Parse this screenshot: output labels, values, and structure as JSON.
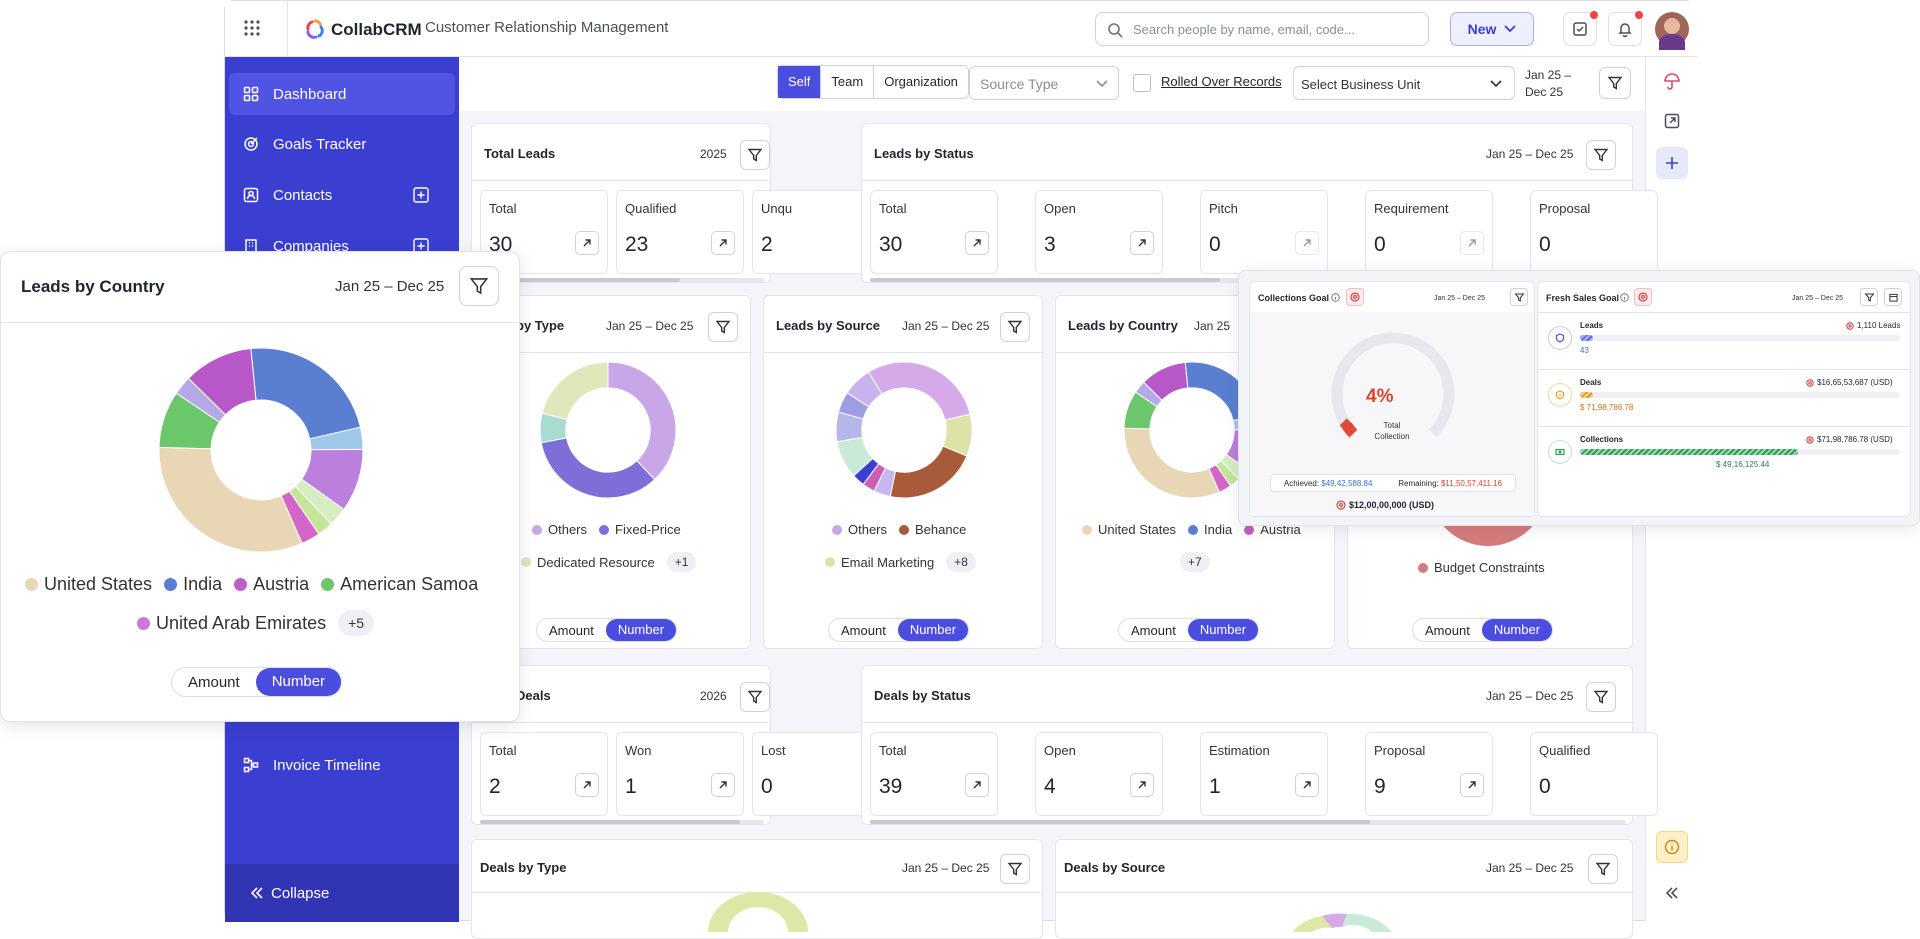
{
  "topbar": {
    "brand": "CollabCRM",
    "subtitle": "Customer Relationship Management",
    "search_placeholder": "Search people by name, email, code...",
    "new_label": "New"
  },
  "sidebar": {
    "items": [
      {
        "label": "Dashboard"
      },
      {
        "label": "Goals Tracker"
      },
      {
        "label": "Contacts"
      },
      {
        "label": "Companies"
      },
      {
        "label": "Invoice Timeline"
      }
    ],
    "collapse_label": "Collapse"
  },
  "filters": {
    "scope_options": [
      "Self",
      "Team",
      "Organization"
    ],
    "source_type_placeholder": "Source Type",
    "rolled_over_label": "Rolled Over Records",
    "business_unit_placeholder": "Select Business Unit",
    "date_line1": "Jan 25 –",
    "date_line2": "Dec 25"
  },
  "total_leads": {
    "title": "Total Leads",
    "year": "2025",
    "stats": [
      {
        "label": "Total",
        "value": "30"
      },
      {
        "label": "Qualified",
        "value": "23"
      },
      {
        "label": "Unqu",
        "value": "2"
      }
    ]
  },
  "leads_by_status": {
    "title": "Leads by Status",
    "date": "Jan 25 – Dec 25",
    "stats": [
      {
        "label": "Total",
        "value": "30"
      },
      {
        "label": "Open",
        "value": "3"
      },
      {
        "label": "Pitch",
        "value": "0"
      },
      {
        "label": "Requirement",
        "value": "0"
      },
      {
        "label": "Proposal",
        "value": "0"
      }
    ]
  },
  "leads_by_type": {
    "title": "by Type",
    "date": "Jan 25 – Dec 25",
    "legend": [
      {
        "label": "Others",
        "color": "#c9a6e6"
      },
      {
        "label": "Fixed-Price",
        "color": "#7e6ed8"
      },
      {
        "label": "Dedicated Resource",
        "color": "#dfe7bb"
      }
    ],
    "more": "+1",
    "slices": [
      {
        "value": 38,
        "color": "#c9a6e6"
      },
      {
        "value": 34,
        "color": "#7e6ed8"
      },
      {
        "value": 7,
        "color": "#a8dcd0"
      },
      {
        "value": 21,
        "color": "#dfe7bb"
      }
    ]
  },
  "leads_by_source": {
    "title": "Leads by Source",
    "date": "Jan 25 – Dec 25",
    "legend": [
      {
        "label": "Others",
        "color": "#c9a6e6"
      },
      {
        "label": "Behance",
        "color": "#a85a3a"
      },
      {
        "label": "Email Marketing",
        "color": "#dde3a6"
      }
    ],
    "more": "+8",
    "slices": [
      {
        "value": 30,
        "color": "#d6a9e8"
      },
      {
        "value": 10,
        "color": "#dde3a6"
      },
      {
        "value": 22,
        "color": "#a85a3a"
      },
      {
        "value": 4,
        "color": "#c7b6f0"
      },
      {
        "value": 3,
        "color": "#cc5eb6"
      },
      {
        "value": 3,
        "color": "#3b3fd1"
      },
      {
        "value": 9,
        "color": "#c8ead6"
      },
      {
        "value": 7,
        "color": "#b6b6e8"
      },
      {
        "value": 5,
        "color": "#9d9de3"
      },
      {
        "value": 7,
        "color": "#c9b3ef"
      }
    ]
  },
  "leads_by_country_small": {
    "title": "Leads by Country",
    "date": "Jan 25",
    "legend": [
      {
        "label": "United States",
        "color": "#e8d6b5"
      },
      {
        "label": "India",
        "color": "#5b7fd0"
      },
      {
        "label": "Austria",
        "color": "#c05ec8"
      }
    ],
    "more": "+7"
  },
  "fourth_card": {
    "legend": [
      {
        "label": "Budget Constraints",
        "color": "#d47c7c"
      }
    ]
  },
  "toggle": {
    "amount": "Amount",
    "number": "Number"
  },
  "total_deals": {
    "title": "Deals",
    "year": "2026",
    "stats": [
      {
        "label": "Total",
        "value": "2"
      },
      {
        "label": "Won",
        "value": "1"
      },
      {
        "label": "Lost",
        "value": "0"
      }
    ]
  },
  "deals_by_status": {
    "title": "Deals by Status",
    "date": "Jan 25 – Dec 25",
    "stats": [
      {
        "label": "Total",
        "value": "39"
      },
      {
        "label": "Open",
        "value": "4"
      },
      {
        "label": "Estimation",
        "value": "1"
      },
      {
        "label": "Proposal",
        "value": "9"
      },
      {
        "label": "Qualified",
        "value": "0"
      }
    ]
  },
  "deals_by_type": {
    "title": "Deals by Type",
    "date": "Jan 25 – Dec 25"
  },
  "deals_by_source": {
    "title": "Deals by Source",
    "date": "Jan 25 – Dec 25"
  },
  "overlay_country": {
    "title": "Leads by Country",
    "date": "Jan 25 – Dec 25",
    "legend": [
      {
        "label": "United States",
        "color": "#e8d6b5"
      },
      {
        "label": "India",
        "color": "#5b7fd0"
      },
      {
        "label": "Austria",
        "color": "#c05ec8"
      },
      {
        "label": "American Samoa",
        "color": "#6cc76c"
      },
      {
        "label": "United Arab Emirates",
        "color": "#c67bd8"
      }
    ],
    "more": "+5",
    "slices": [
      {
        "value": 23,
        "color": "#5b7fd0"
      },
      {
        "value": 3.5,
        "color": "#9fc9e8"
      },
      {
        "value": 10,
        "color": "#bb7fdd"
      },
      {
        "value": 3,
        "color": "#d8ecc2"
      },
      {
        "value": 2.5,
        "color": "#c4e59a"
      },
      {
        "value": 3,
        "color": "#d365c8"
      },
      {
        "value": 32,
        "color": "#e8d6b5"
      },
      {
        "value": 9,
        "color": "#6cc76c"
      },
      {
        "value": 3,
        "color": "#b5a8e8"
      },
      {
        "value": 11,
        "color": "#b858c8"
      }
    ]
  },
  "collections_goal": {
    "title": "Collections Goal",
    "date": "Jan 25 – Dec 25",
    "percent": "4%",
    "progress": 0.04,
    "center_line1": "Total",
    "center_line2": "Collection",
    "achieved_label": "Achieved:",
    "achieved_value": "$49,42,588.84",
    "remaining_label": "Remaining:",
    "remaining_value": "$11,50,57,411.16",
    "target": "$12,00,00,000 (USD)"
  },
  "fresh_sales_goal": {
    "title": "Fresh Sales Goal",
    "date": "Jan 25 – Dec 25",
    "rows": [
      {
        "label": "Leads",
        "target": "1,110 Leads",
        "current": "43",
        "progress": 0.04
      },
      {
        "label": "Deals",
        "target": "$16,65,53,687 (USD)",
        "current": "$ 71,98,786.78",
        "progress": 0.04
      },
      {
        "label": "Collections",
        "target": "$71,98,786.78 (USD)",
        "current": "$ 49,16,125.44",
        "progress": 0.68
      }
    ]
  }
}
